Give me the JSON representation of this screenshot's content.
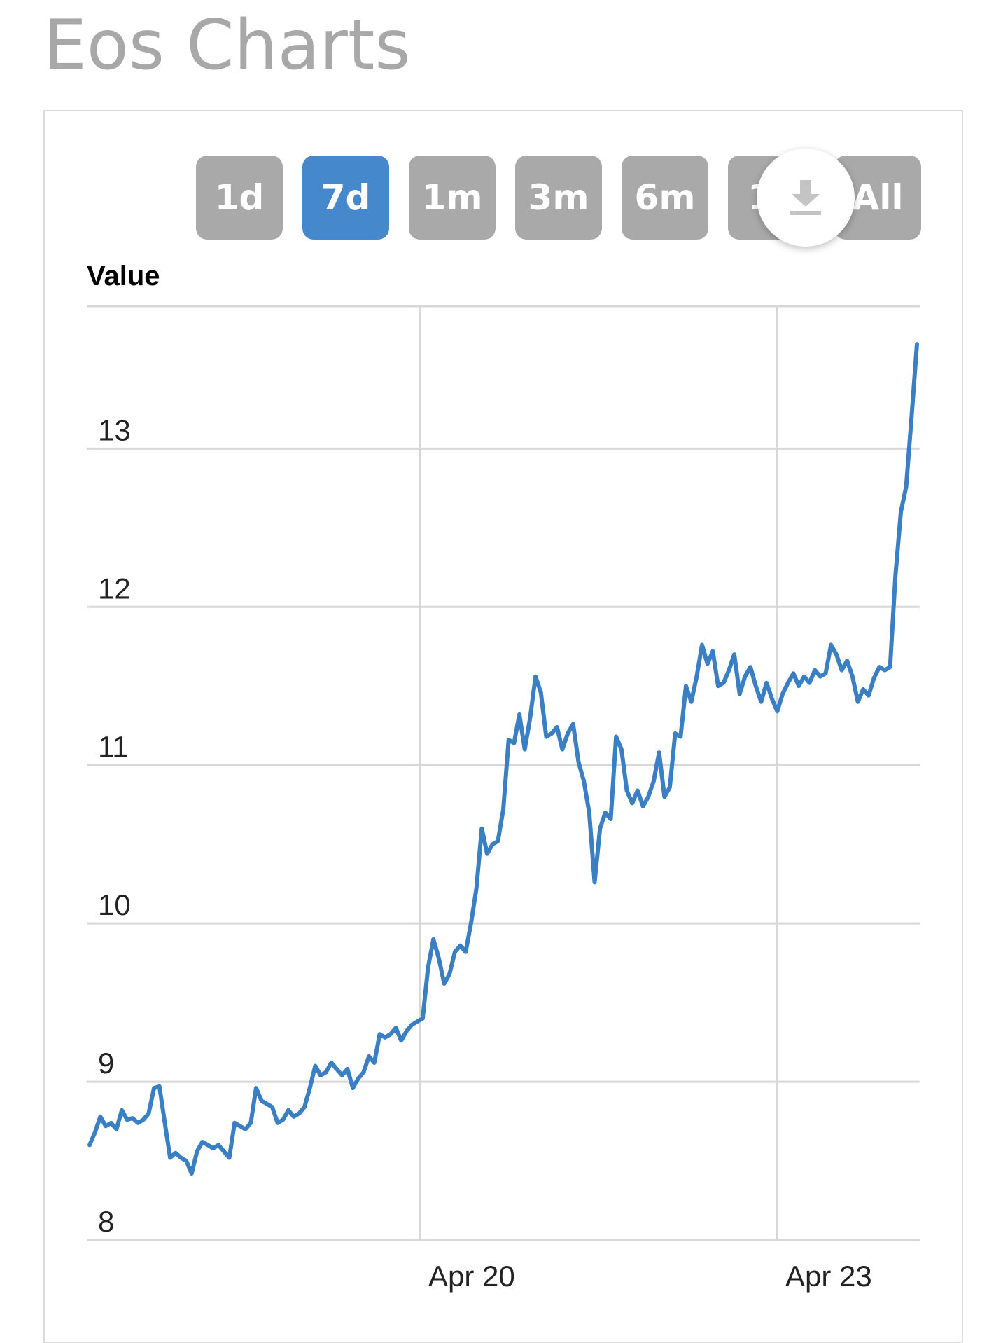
{
  "page": {
    "title": "Eos Charts"
  },
  "range_buttons": [
    {
      "label": "1d",
      "active": false
    },
    {
      "label": "7d",
      "active": true
    },
    {
      "label": "1m",
      "active": false
    },
    {
      "label": "3m",
      "active": false
    },
    {
      "label": "6m",
      "active": false
    },
    {
      "label": "1y",
      "active": false
    },
    {
      "label": "All",
      "active": false
    }
  ],
  "download": {
    "icon": "download-icon"
  },
  "colors": {
    "line": "#3a7fc4",
    "active_button": "#4589cc",
    "button": "#a9a9a9",
    "grid": "#d8d8d8",
    "title": "#a8a8a8"
  },
  "chart_data": {
    "type": "line",
    "ylabel": "Value",
    "ylim": [
      8,
      13.9
    ],
    "yticks": [
      8,
      9,
      10,
      11,
      12,
      13
    ],
    "xtick_labels": [
      "Apr 20",
      "Apr 23"
    ],
    "xtick_positions_days": [
      2.8,
      5.8
    ],
    "xlim_days": [
      0,
      7
    ],
    "grid": true,
    "legend": "none",
    "series": [
      {
        "values": [
          8.6,
          8.68,
          8.78,
          8.72,
          8.74,
          8.7,
          8.82,
          8.76,
          8.77,
          8.74,
          8.76,
          8.8,
          8.96,
          8.97,
          8.74,
          8.52,
          8.55,
          8.52,
          8.5,
          8.42,
          8.56,
          8.62,
          8.6,
          8.58,
          8.6,
          8.56,
          8.52,
          8.74,
          8.72,
          8.7,
          8.74,
          8.96,
          8.88,
          8.86,
          8.84,
          8.74,
          8.76,
          8.82,
          8.78,
          8.8,
          8.84,
          8.96,
          9.1,
          9.04,
          9.06,
          9.12,
          9.08,
          9.04,
          9.08,
          8.96,
          9.02,
          9.06,
          9.16,
          9.12,
          9.3,
          9.28,
          9.3,
          9.34,
          9.26,
          9.32,
          9.36,
          9.38,
          9.4,
          9.72,
          9.9,
          9.78,
          9.62,
          9.68,
          9.82,
          9.86,
          9.82,
          10.0,
          10.22,
          10.6,
          10.44,
          10.5,
          10.52,
          10.72,
          11.16,
          11.14,
          11.32,
          11.1,
          11.3,
          11.56,
          11.46,
          11.18,
          11.2,
          11.24,
          11.1,
          11.2,
          11.26,
          11.02,
          10.9,
          10.7,
          10.26,
          10.6,
          10.7,
          10.66,
          11.18,
          11.1,
          10.84,
          10.76,
          10.84,
          10.74,
          10.8,
          10.9,
          11.08,
          10.8,
          10.86,
          11.2,
          11.18,
          11.5,
          11.4,
          11.56,
          11.76,
          11.64,
          11.72,
          11.5,
          11.52,
          11.6,
          11.7,
          11.45,
          11.56,
          11.62,
          11.5,
          11.4,
          11.52,
          11.42,
          11.34,
          11.45,
          11.52,
          11.58,
          11.5,
          11.56,
          11.52,
          11.6,
          11.56,
          11.58,
          11.76,
          11.7,
          11.6,
          11.66,
          11.56,
          11.4,
          11.48,
          11.44,
          11.55,
          11.62,
          11.6,
          11.62,
          12.2,
          12.6,
          12.76,
          13.2,
          13.66
        ]
      }
    ]
  }
}
